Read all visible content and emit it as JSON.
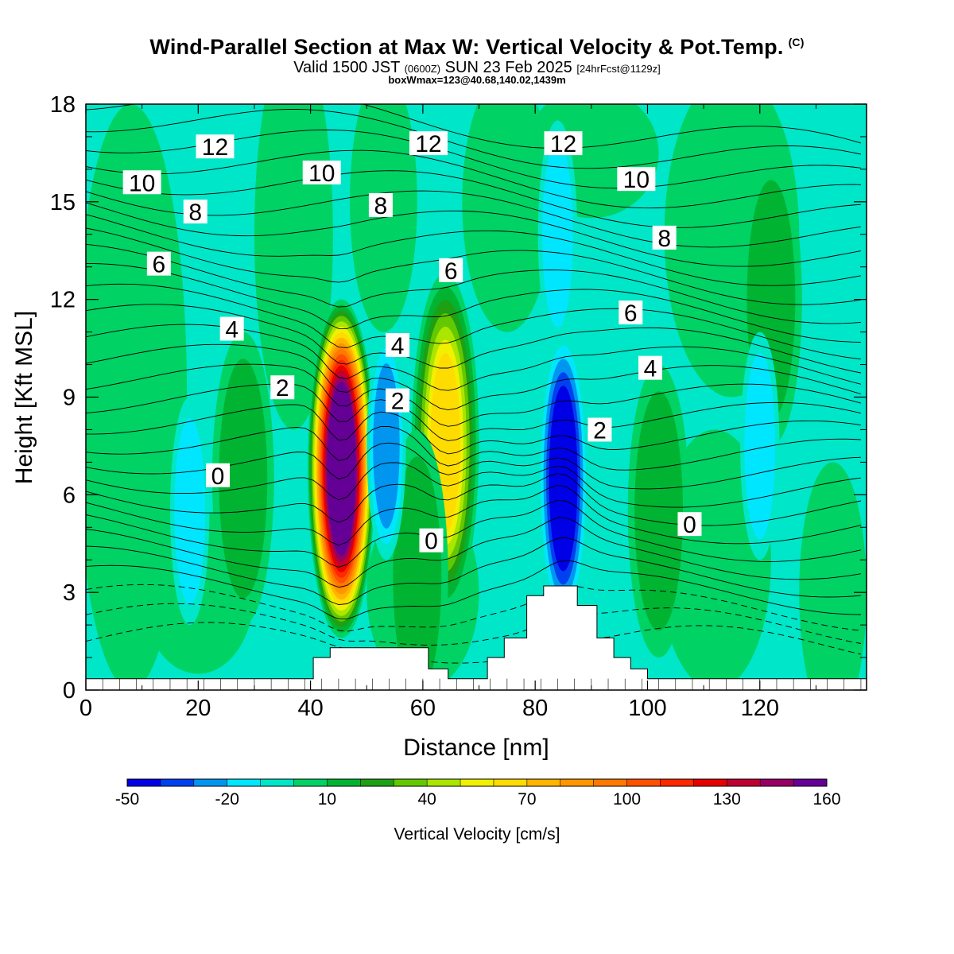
{
  "header": {
    "title": "Wind-Parallel Section at Max W: Vertical Velocity & Pot.Temp.",
    "copyright": "(C)",
    "valid_prefix": "Valid 1500 JST",
    "valid_utc": "(0600Z)",
    "valid_date": "SUN 23 Feb 2025",
    "forecast": "[24hrFcst@1129z]",
    "box_info": "boxWmax=123@40.68,140.02,1439m"
  },
  "chart_data": {
    "type": "heatmap",
    "xlabel": "Distance [nm]",
    "ylabel": "Height [Kft MSL]",
    "xlim": [
      0,
      139
    ],
    "ylim": [
      0,
      18
    ],
    "x_ticks": [
      0,
      20,
      40,
      60,
      80,
      100,
      120
    ],
    "y_ticks": [
      0,
      3,
      6,
      9,
      12,
      15,
      18
    ],
    "colorbar": {
      "label": "Vertical Velocity [cm/s]",
      "tick_labels": [
        "-50",
        "-20",
        "10",
        "40",
        "70",
        "100",
        "130",
        "160"
      ],
      "tick_values": [
        -50,
        -20,
        10,
        40,
        70,
        100,
        130,
        160
      ],
      "levels": [
        -50,
        -40,
        -30,
        -20,
        -10,
        0,
        10,
        20,
        30,
        40,
        50,
        60,
        70,
        80,
        90,
        100,
        110,
        120,
        130,
        140,
        150,
        160
      ],
      "colors": [
        "#0000e6",
        "#0040f0",
        "#0096f0",
        "#00e6ff",
        "#00e6c8",
        "#00d264",
        "#00b432",
        "#1ea014",
        "#64c800",
        "#aae600",
        "#f0f000",
        "#ffdc00",
        "#ffb400",
        "#ff9600",
        "#ff7800",
        "#ff5000",
        "#ff2800",
        "#e60000",
        "#be0032",
        "#960064",
        "#640096"
      ]
    },
    "updrafts": [
      {
        "x": 45.5,
        "y": 6.8,
        "peak": 155
      },
      {
        "x": 64,
        "y": 7.6,
        "peak": 60
      },
      {
        "x": 28,
        "y": 6.5,
        "peak": 15
      },
      {
        "x": 102,
        "y": 5.5,
        "peak": 15
      },
      {
        "x": 122,
        "y": 12,
        "peak": 12
      },
      {
        "x": 59,
        "y": 3.5,
        "peak": 12
      }
    ],
    "downdrafts": [
      {
        "x": 85,
        "y": 6.5,
        "peak": -45
      },
      {
        "x": 53.5,
        "y": 7.5,
        "peak": -25
      },
      {
        "x": 18.5,
        "y": 5.5,
        "peak": -12
      },
      {
        "x": 120,
        "y": 7.5,
        "peak": -12
      },
      {
        "x": 84,
        "y": 14,
        "peak": -12
      }
    ],
    "theta_labels": [
      {
        "text": "12",
        "x": 23,
        "y": 16.7
      },
      {
        "text": "12",
        "x": 61,
        "y": 16.8
      },
      {
        "text": "12",
        "x": 85,
        "y": 16.8
      },
      {
        "text": "10",
        "x": 10,
        "y": 15.6
      },
      {
        "text": "10",
        "x": 42,
        "y": 15.9
      },
      {
        "text": "10",
        "x": 98,
        "y": 15.7
      },
      {
        "text": "8",
        "x": 19.5,
        "y": 14.7
      },
      {
        "text": "8",
        "x": 52.5,
        "y": 14.9
      },
      {
        "text": "8",
        "x": 103,
        "y": 13.9
      },
      {
        "text": "6",
        "x": 13,
        "y": 13.1
      },
      {
        "text": "6",
        "x": 65,
        "y": 12.9
      },
      {
        "text": "6",
        "x": 97,
        "y": 11.6
      },
      {
        "text": "4",
        "x": 26,
        "y": 11.1
      },
      {
        "text": "4",
        "x": 55.5,
        "y": 10.6
      },
      {
        "text": "4",
        "x": 100.5,
        "y": 9.9
      },
      {
        "text": "2",
        "x": 35,
        "y": 9.3
      },
      {
        "text": "2",
        "x": 55.5,
        "y": 8.9
      },
      {
        "text": "2",
        "x": 91.5,
        "y": 8.0
      },
      {
        "text": "0",
        "x": 23.5,
        "y": 6.6
      },
      {
        "text": "0",
        "x": 61.5,
        "y": 4.6
      },
      {
        "text": "0",
        "x": 107.5,
        "y": 5.1
      }
    ],
    "terrain": [
      [
        0,
        0.35
      ],
      [
        40.5,
        0.35
      ],
      [
        40.5,
        1.0
      ],
      [
        43.5,
        1.0
      ],
      [
        43.5,
        1.3
      ],
      [
        61,
        1.3
      ],
      [
        61,
        0.65
      ],
      [
        64.5,
        0.65
      ],
      [
        64.5,
        0.35
      ],
      [
        71.5,
        0.35
      ],
      [
        71.5,
        1.0
      ],
      [
        74.5,
        1.0
      ],
      [
        74.5,
        1.6
      ],
      [
        78.5,
        1.6
      ],
      [
        78.5,
        2.9
      ],
      [
        81.5,
        2.9
      ],
      [
        81.5,
        3.2
      ],
      [
        87.5,
        3.2
      ],
      [
        87.5,
        2.6
      ],
      [
        91,
        2.6
      ],
      [
        91,
        1.6
      ],
      [
        94,
        1.6
      ],
      [
        94,
        1.0
      ],
      [
        97,
        1.0
      ],
      [
        97,
        0.65
      ],
      [
        100,
        0.65
      ],
      [
        100,
        0.35
      ],
      [
        139,
        0.35
      ]
    ]
  }
}
